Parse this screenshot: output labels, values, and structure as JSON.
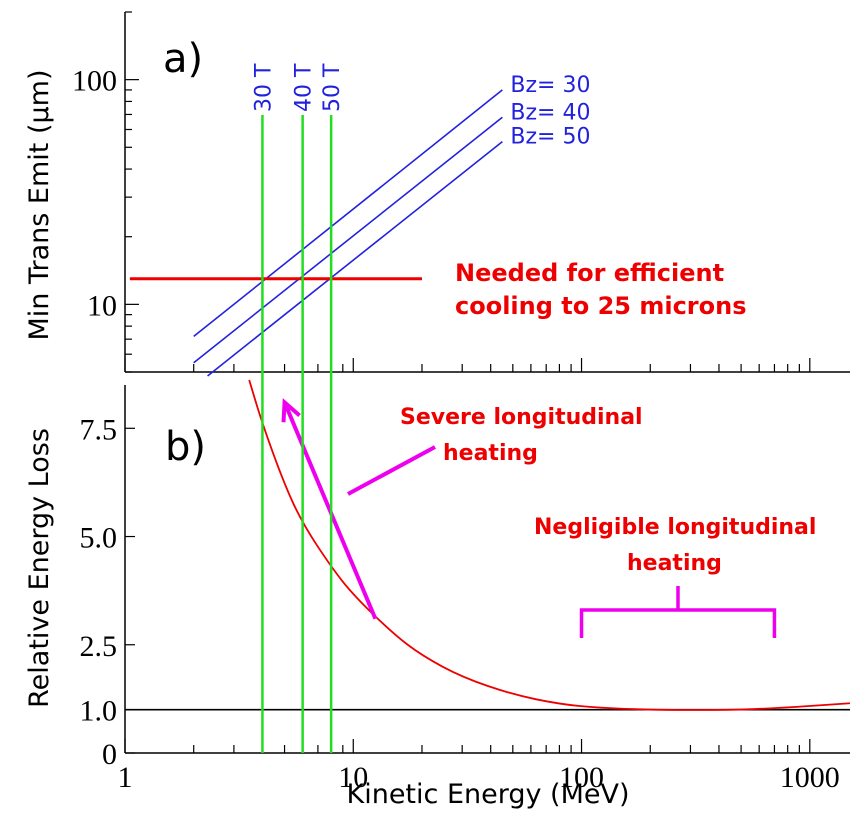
{
  "chart_data": [
    {
      "panel_label": "a)",
      "type": "line",
      "xscale": "log",
      "yscale": "log",
      "xlim": [
        1,
        1500
      ],
      "ylim": [
        5,
        200
      ],
      "ylabel": "Min Trans Emit (μm)",
      "yticks": [
        {
          "value": 10,
          "label": "10"
        },
        {
          "value": 100,
          "label": "100"
        }
      ],
      "series": [
        {
          "name": "Bz= 30",
          "color": "#2222dd",
          "points": [
            {
              "x": 2,
              "y": 7.2
            },
            {
              "x": 45,
              "y": 90
            }
          ]
        },
        {
          "name": "Bz= 40",
          "color": "#2222dd",
          "points": [
            {
              "x": 2,
              "y": 5.5
            },
            {
              "x": 45,
              "y": 68
            }
          ]
        },
        {
          "name": "Bz= 50",
          "color": "#2222dd",
          "points": [
            {
              "x": 2.3,
              "y": 4.8
            },
            {
              "x": 45,
              "y": 53
            }
          ]
        }
      ],
      "threshold": {
        "y": 13,
        "x_from": 1.05,
        "x_to": 20,
        "color": "#ee0000",
        "label_line1": "Needed for efficient",
        "label_line2": "cooling to 25 microns"
      },
      "field_lines": [
        {
          "label": "30 T",
          "x": 4,
          "color": "#22dd22"
        },
        {
          "label": "40 T",
          "x": 6,
          "color": "#22dd22"
        },
        {
          "label": "50 T",
          "x": 8,
          "color": "#22dd22"
        }
      ]
    },
    {
      "panel_label": "b)",
      "type": "line",
      "xscale": "log",
      "xlim": [
        1,
        1500
      ],
      "ylim": [
        0,
        8.5
      ],
      "xlabel": "Kinetic Energy (MeV)",
      "ylabel": "Relative Energy Loss",
      "xticks": [
        {
          "value": 1,
          "label": "1"
        },
        {
          "value": 10,
          "label": "10"
        },
        {
          "value": 100,
          "label": "100"
        },
        {
          "value": 1000,
          "label": "1000"
        }
      ],
      "yticks": [
        {
          "value": 0,
          "label": "0"
        },
        {
          "value": 1,
          "label": "1.0"
        },
        {
          "value": 2.5,
          "label": "2.5"
        },
        {
          "value": 5,
          "label": "5.0"
        },
        {
          "value": 7.5,
          "label": "7.5"
        }
      ],
      "series": [
        {
          "color": "#ee0000",
          "points": [
            {
              "x": 3.5,
              "y": 8.7
            },
            {
              "x": 4,
              "y": 7.6
            },
            {
              "x": 5,
              "y": 6.2
            },
            {
              "x": 6,
              "y": 5.3
            },
            {
              "x": 8,
              "y": 4.3
            },
            {
              "x": 10,
              "y": 3.65
            },
            {
              "x": 15,
              "y": 2.75
            },
            {
              "x": 20,
              "y": 2.25
            },
            {
              "x": 30,
              "y": 1.75
            },
            {
              "x": 50,
              "y": 1.35
            },
            {
              "x": 80,
              "y": 1.13
            },
            {
              "x": 120,
              "y": 1.04
            },
            {
              "x": 200,
              "y": 1.0
            },
            {
              "x": 300,
              "y": 0.99
            },
            {
              "x": 500,
              "y": 1.0
            },
            {
              "x": 800,
              "y": 1.05
            },
            {
              "x": 1500,
              "y": 1.15
            }
          ]
        }
      ],
      "reference_line": {
        "y": 1.0,
        "color": "#000000"
      },
      "annotations": [
        {
          "text_line1": "Severe longitudinal",
          "text_line2": "heating",
          "color": "#ee0000"
        },
        {
          "text_line1": "Negligible longitudinal",
          "text_line2": "heating",
          "color": "#ee0000",
          "bracket_x_from": 100,
          "bracket_x_to": 700
        }
      ],
      "arrow": {
        "from": {
          "x": 12.5,
          "y": 3.1
        },
        "to": {
          "x": 5,
          "y": 8.1
        },
        "color": "#ee00ee"
      }
    }
  ]
}
